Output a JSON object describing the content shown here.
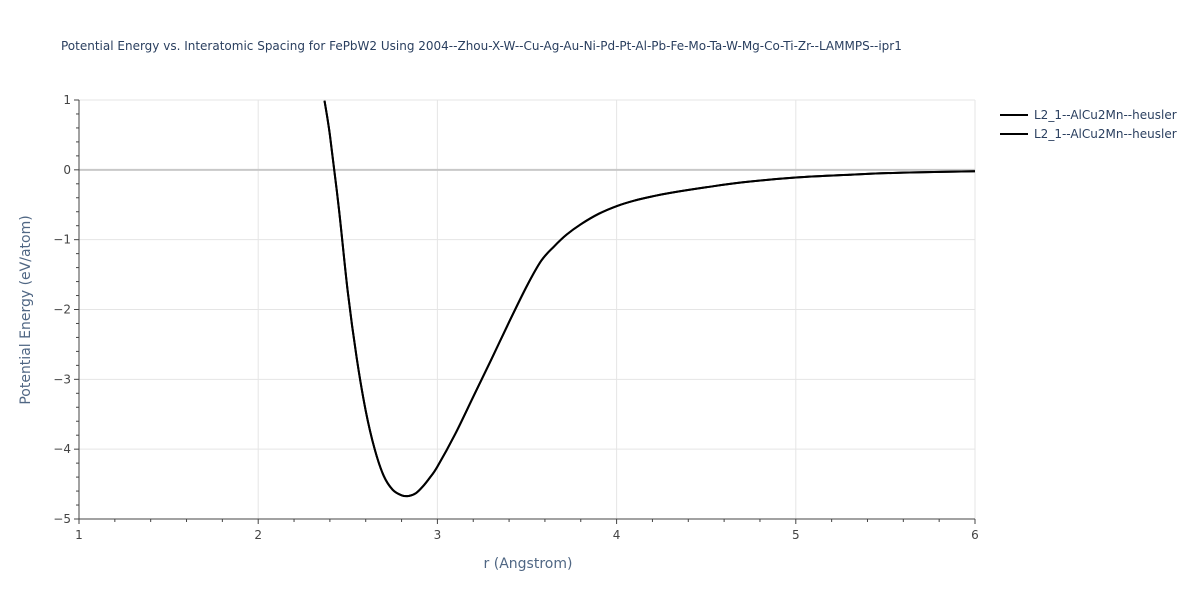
{
  "chart_data": {
    "type": "line",
    "title": "Potential Energy vs. Interatomic Spacing for FePbW2 Using 2004--Zhou-X-W--Cu-Ag-Au-Ni-Pd-Pt-Al-Pb-Fe-Mo-Ta-W-Mg-Co-Ti-Zr--LAMMPS--ipr1",
    "xlabel": "r (Angstrom)",
    "ylabel": "Potential Energy (eV/atom)",
    "xlim": [
      1,
      6
    ],
    "ylim": [
      -5,
      1
    ],
    "x_ticks": [
      1,
      2,
      3,
      4,
      5,
      6
    ],
    "x_tick_labels": [
      "1",
      "2",
      "3",
      "4",
      "5",
      "6"
    ],
    "y_ticks": [
      1,
      0,
      -1,
      -2,
      -3,
      -4,
      -5
    ],
    "y_tick_labels": [
      "1",
      "0",
      "−1",
      "−2",
      "−3",
      "−4",
      "−5"
    ],
    "grid": true,
    "legend_position": "top-right",
    "colors": {
      "line": "#000000",
      "grid": "#e5e5e5",
      "zeroline": "#c8c8c8",
      "title": "#2a3f5f",
      "axis_title": "#506784"
    },
    "series": [
      {
        "name": "L2_1--AlCu2Mn--heusler",
        "x": [
          2.37,
          2.4,
          2.45,
          2.5,
          2.55,
          2.6,
          2.65,
          2.7,
          2.75,
          2.8,
          2.84,
          2.88,
          2.92,
          2.96,
          3.0,
          3.1,
          3.2,
          3.3,
          3.4,
          3.5,
          3.58,
          3.65,
          3.72,
          3.8,
          3.9,
          4.0,
          4.1,
          4.2,
          4.3,
          4.5,
          4.7,
          5.0,
          5.3,
          5.6,
          6.0
        ],
        "y": [
          0.99,
          0.5,
          -0.55,
          -1.75,
          -2.7,
          -3.45,
          -4.0,
          -4.38,
          -4.58,
          -4.66,
          -4.67,
          -4.63,
          -4.53,
          -4.4,
          -4.25,
          -3.78,
          -3.25,
          -2.72,
          -2.18,
          -1.66,
          -1.3,
          -1.1,
          -0.93,
          -0.78,
          -0.63,
          -0.52,
          -0.44,
          -0.38,
          -0.33,
          -0.25,
          -0.18,
          -0.11,
          -0.07,
          -0.04,
          -0.02
        ]
      },
      {
        "name": "L2_1--AlCu2Mn--heusler",
        "x": [
          2.37,
          2.4,
          2.45,
          2.5,
          2.55,
          2.6,
          2.65,
          2.7,
          2.75,
          2.8,
          2.84,
          2.88,
          2.92,
          2.96,
          3.0,
          3.1,
          3.2,
          3.3,
          3.4,
          3.5,
          3.58,
          3.65,
          3.72,
          3.8,
          3.9,
          4.0,
          4.1,
          4.2,
          4.3,
          4.5,
          4.7,
          5.0,
          5.3,
          5.6,
          6.0
        ],
        "y": [
          0.99,
          0.5,
          -0.55,
          -1.75,
          -2.7,
          -3.45,
          -4.0,
          -4.38,
          -4.58,
          -4.66,
          -4.67,
          -4.63,
          -4.53,
          -4.4,
          -4.25,
          -3.78,
          -3.25,
          -2.72,
          -2.18,
          -1.66,
          -1.3,
          -1.1,
          -0.93,
          -0.78,
          -0.63,
          -0.52,
          -0.44,
          -0.38,
          -0.33,
          -0.25,
          -0.18,
          -0.11,
          -0.07,
          -0.04,
          -0.02
        ]
      }
    ]
  }
}
